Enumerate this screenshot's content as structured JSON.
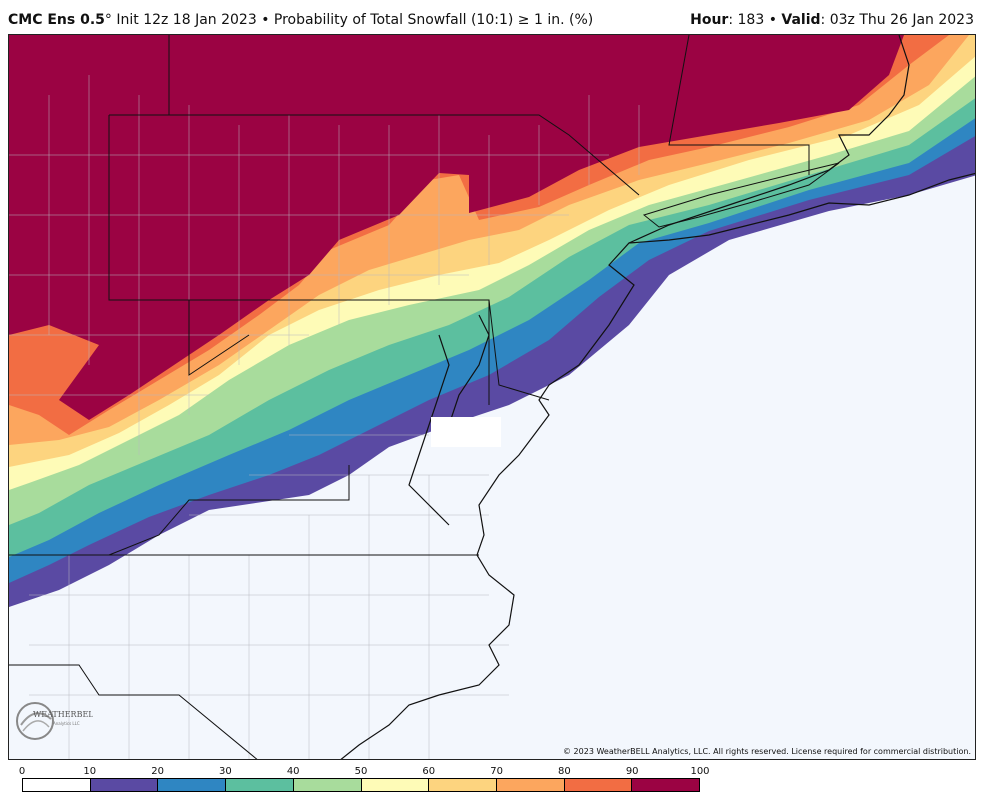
{
  "header": {
    "model": "CMC Ens 0.5",
    "degree": "°",
    "init": "Init 12z 18 Jan 2023",
    "bullet": "•",
    "product": "Probability of Total Snowfall (10:1)",
    "threshold": "≥ 1 in. (%)",
    "hour_label": "Hour",
    "hour_value": ": 183",
    "valid_label": "Valid",
    "valid_value": ": 03z Thu 26 Jan 2023"
  },
  "logo": {
    "text": "WEATHERBELL",
    "subtext": "Analytics LLC"
  },
  "copyright": "© 2023 WeatherBELL Analytics, LLC. All rights reserved. License required for commercial distribution.",
  "legend": {
    "ticks": [
      "0",
      "10",
      "20",
      "30",
      "40",
      "50",
      "60",
      "70",
      "80",
      "90",
      "100"
    ],
    "colors": [
      "#ffffff",
      "#5a4aa3",
      "#2f86c2",
      "#5cbf9f",
      "#a8dc9c",
      "#fefbb7",
      "#fdd47f",
      "#fca65e",
      "#f26d43",
      "#9b0343"
    ]
  },
  "map": {
    "region": "Mid-Atlantic and Northeast United States",
    "no_snow_color": "#f3f7fd",
    "land_border_color": "#222222"
  }
}
